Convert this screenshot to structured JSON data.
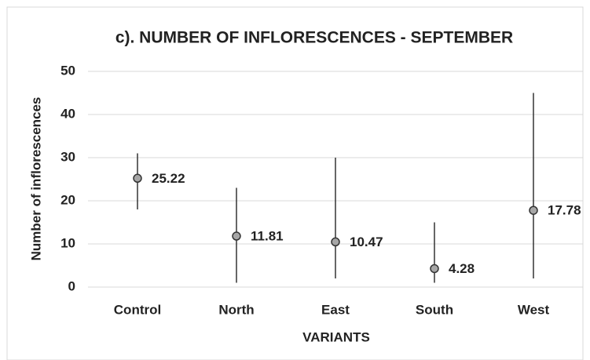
{
  "chart_data": {
    "type": "dot-range",
    "title": "c). NUMBER OF INFLORESCENCES - SEPTEMBER",
    "x_label": "VARIANTS",
    "y_label": "Number of inflorescences",
    "categories": [
      "Control",
      "North",
      "East",
      "South",
      "West"
    ],
    "values": [
      25.22,
      11.81,
      10.47,
      4.28,
      17.78
    ],
    "lows": [
      18,
      1,
      2,
      1,
      2
    ],
    "highs": [
      31,
      23,
      30,
      15,
      45
    ],
    "color": "#a6a6a6",
    "ylim": [
      0,
      50
    ],
    "yticks": [
      0,
      10,
      20,
      30,
      40,
      50
    ],
    "grid": true
  }
}
